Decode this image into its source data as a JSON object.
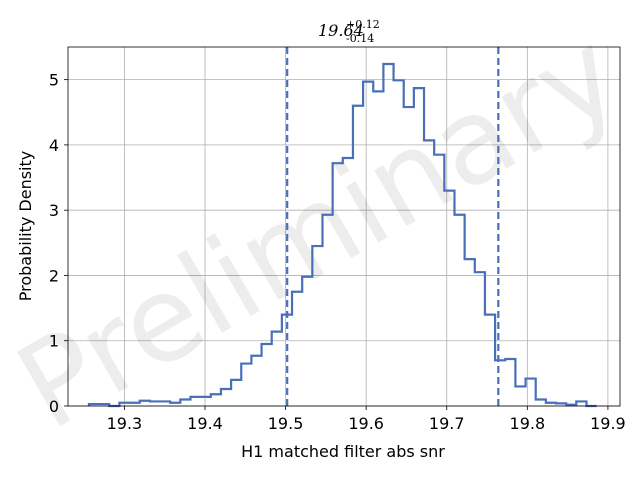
{
  "chart_data": {
    "type": "histogram",
    "title": {
      "value": "19.64",
      "upper": "+0.12",
      "lower": "-0.14"
    },
    "xlabel": "H1 matched filter abs snr",
    "ylabel": "Probability Density",
    "watermark": "Preliminary",
    "xlim": [
      19.23,
      19.915
    ],
    "ylim": [
      0,
      5.5
    ],
    "xticks": [
      19.3,
      19.4,
      19.5,
      19.6,
      19.7,
      19.8,
      19.9
    ],
    "xtick_labels": [
      "19.3",
      "19.4",
      "19.5",
      "19.6",
      "19.7",
      "19.8",
      "19.9"
    ],
    "yticks": [
      0,
      1,
      2,
      3,
      4,
      5
    ],
    "ytick_labels": [
      "0",
      "1",
      "2",
      "3",
      "4",
      "5"
    ],
    "grid": true,
    "line_color": "#4a6fb8",
    "bin_edges": [
      19.256,
      19.2686,
      19.2812,
      19.2938,
      19.3064,
      19.319,
      19.3316,
      19.3442,
      19.3568,
      19.3694,
      19.382,
      19.3946,
      19.4072,
      19.4198,
      19.4324,
      19.445,
      19.4576,
      19.4702,
      19.4828,
      19.4954,
      19.508,
      19.5206,
      19.5332,
      19.5458,
      19.5584,
      19.571,
      19.5836,
      19.5962,
      19.6088,
      19.6214,
      19.634,
      19.6466,
      19.6592,
      19.6718,
      19.6844,
      19.697,
      19.7096,
      19.7222,
      19.7348,
      19.7474,
      19.76,
      19.7726,
      19.7852,
      19.7978,
      19.8104,
      19.823,
      19.8356,
      19.8482,
      19.8608,
      19.8734,
      19.886
    ],
    "densities": [
      0.03,
      0.03,
      0.0,
      0.05,
      0.05,
      0.08,
      0.07,
      0.07,
      0.05,
      0.1,
      0.14,
      0.14,
      0.18,
      0.26,
      0.4,
      0.65,
      0.77,
      0.95,
      1.14,
      1.4,
      1.75,
      1.98,
      2.45,
      2.93,
      3.72,
      3.8,
      4.6,
      4.97,
      4.82,
      5.24,
      4.99,
      4.58,
      4.87,
      4.07,
      3.85,
      3.3,
      2.93,
      2.25,
      2.05,
      1.4,
      0.7,
      0.72,
      0.3,
      0.42,
      0.1,
      0.05,
      0.04,
      0.02,
      0.07,
      0.0
    ],
    "credible_interval_lines": [
      19.502,
      19.764
    ]
  }
}
